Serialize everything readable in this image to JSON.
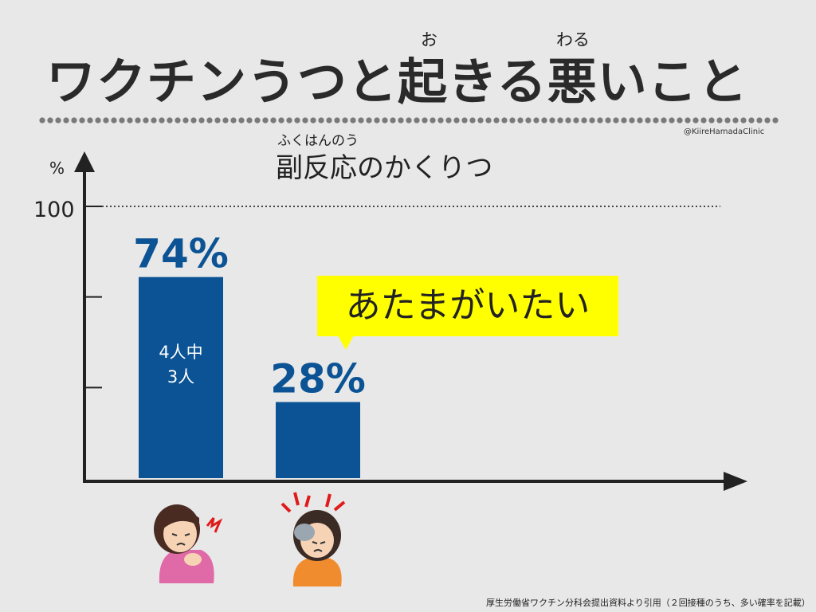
{
  "title": {
    "text": "ワクチンうつと起きる悪いこと",
    "ruby_o": "お",
    "ruby_waru": "わる"
  },
  "credit": "@KiireHamadaClinic",
  "chart_data": {
    "type": "bar",
    "title": "副反応のかくりつ",
    "title_ruby": "ふくはんのう",
    "ylabel": "%",
    "ylim": [
      0,
      100
    ],
    "y_tick_label": "100",
    "categories": [
      "",
      ""
    ],
    "values": [
      74,
      28
    ],
    "value_labels": [
      "74%",
      "28%"
    ],
    "bar_color": "#0b5394",
    "bar1_inner_text": [
      "4人中",
      "3人"
    ]
  },
  "callout": "あたまがいたい",
  "source": "厚生労働省ワクチン分科会提出資料より引用（２回接種のうち、多い確率を記載）"
}
